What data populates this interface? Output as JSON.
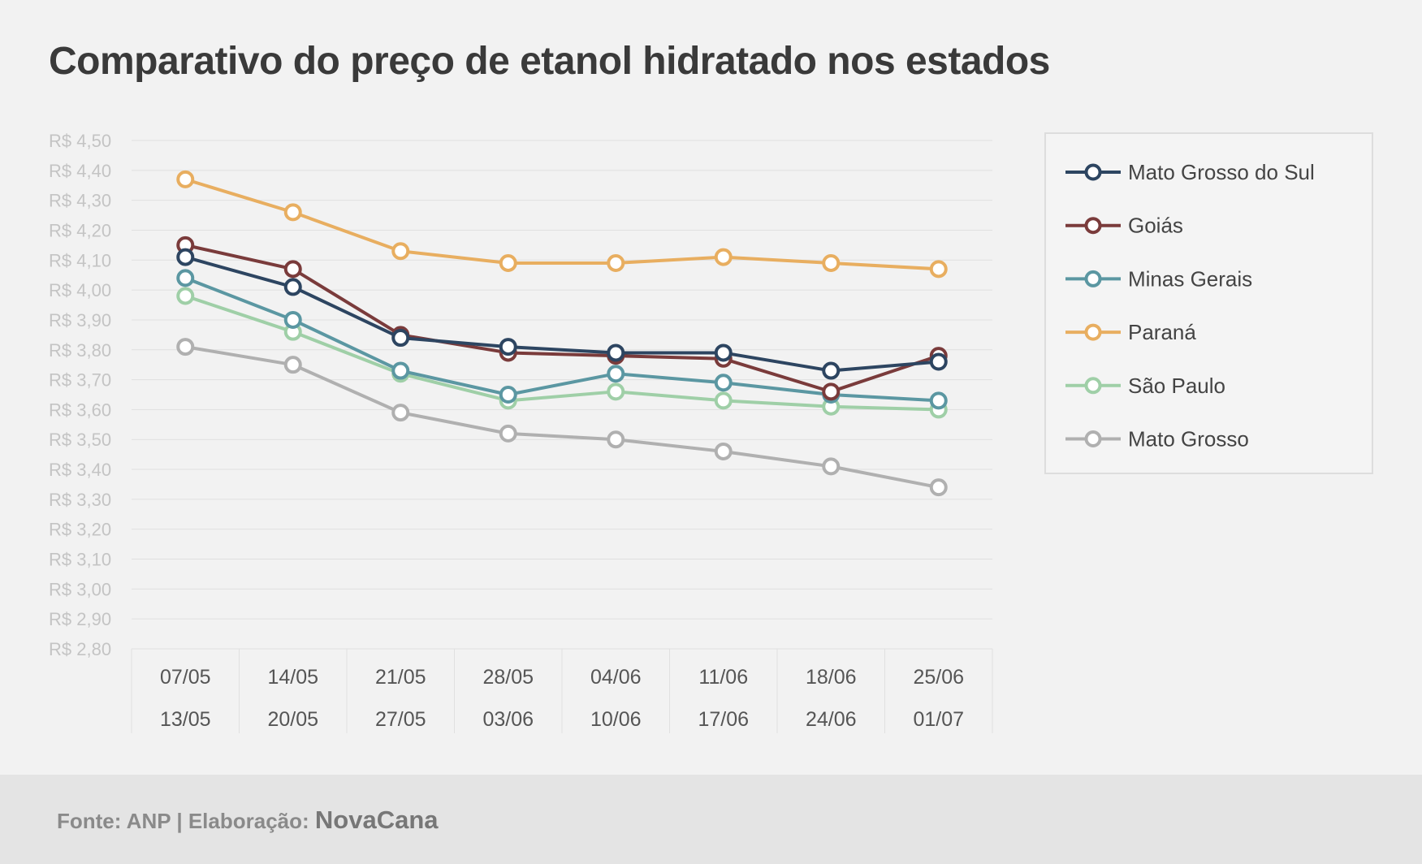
{
  "title": "Comparativo do preço de etanol hidratado nos estados",
  "footer": {
    "source": "Fonte: ANP | Elaboração: ",
    "brand": "NovaCana"
  },
  "chart_data": {
    "type": "line",
    "title": "Comparativo do preço de etanol hidratado nos estados",
    "xlabel": "",
    "ylabel": "",
    "ylim": [
      2.8,
      4.5
    ],
    "y_tick_step": 0.1,
    "y_tick_prefix": "R$ ",
    "grid": true,
    "legend_position": "right",
    "categories": [
      [
        "07/05",
        "13/05"
      ],
      [
        "14/05",
        "20/05"
      ],
      [
        "21/05",
        "27/05"
      ],
      [
        "28/05",
        "03/06"
      ],
      [
        "04/06",
        "10/06"
      ],
      [
        "11/06",
        "17/06"
      ],
      [
        "18/06",
        "24/06"
      ],
      [
        "25/06",
        "01/07"
      ]
    ],
    "series": [
      {
        "name": "Mato Grosso do Sul",
        "color": "#2d4561",
        "values": [
          4.11,
          4.01,
          3.84,
          3.81,
          3.79,
          3.79,
          3.73,
          3.76
        ]
      },
      {
        "name": "Goiás",
        "color": "#7a3b3b",
        "values": [
          4.15,
          4.07,
          3.85,
          3.79,
          3.78,
          3.77,
          3.66,
          3.78
        ]
      },
      {
        "name": "Minas Gerais",
        "color": "#5b97a2",
        "values": [
          4.04,
          3.9,
          3.73,
          3.65,
          3.72,
          3.69,
          3.65,
          3.63
        ]
      },
      {
        "name": "Paraná",
        "color": "#e8ae60",
        "values": [
          4.37,
          4.26,
          4.13,
          4.09,
          4.09,
          4.11,
          4.09,
          4.07
        ]
      },
      {
        "name": "São Paulo",
        "color": "#9fcfa7",
        "values": [
          3.98,
          3.86,
          3.72,
          3.63,
          3.66,
          3.63,
          3.61,
          3.6
        ]
      },
      {
        "name": "Mato Grosso",
        "color": "#b0b0b0",
        "values": [
          3.81,
          3.75,
          3.59,
          3.52,
          3.5,
          3.46,
          3.41,
          3.34
        ]
      }
    ]
  }
}
